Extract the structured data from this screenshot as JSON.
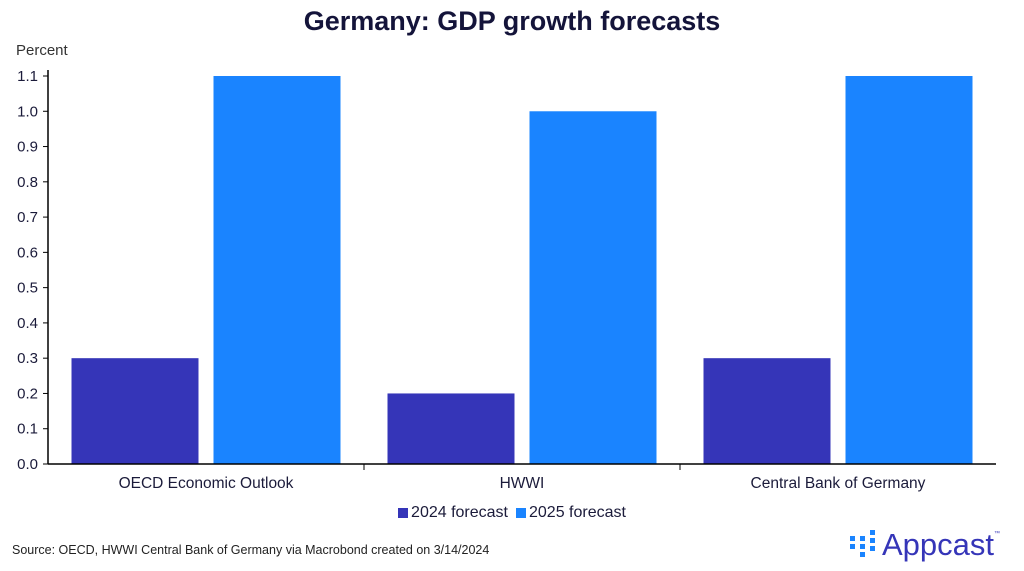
{
  "chart_data": {
    "type": "bar",
    "title": "Germany: GDP growth forecasts",
    "ylabel": "Percent",
    "xlabel": "",
    "categories": [
      "OECD Economic Outlook",
      "HWWI",
      "Central Bank of Germany"
    ],
    "series": [
      {
        "name": "2024 forecast",
        "color": "#3535b8",
        "values": [
          0.3,
          0.2,
          0.3
        ]
      },
      {
        "name": "2025 forecast",
        "color": "#1a84ff",
        "values": [
          1.1,
          1.0,
          1.1
        ]
      }
    ],
    "ylim": [
      0,
      1.1
    ],
    "yticks": [
      "0.0",
      "0.1",
      "0.2",
      "0.3",
      "0.4",
      "0.5",
      "0.6",
      "0.7",
      "0.8",
      "0.9",
      "1.0",
      "1.1"
    ],
    "grid": false,
    "legend": "bottom-center"
  },
  "source": "Source: OECD, HWWI Central Bank of Germany via Macrobond created on 3/14/2024",
  "logo": {
    "text": "Appcast",
    "tm": "™"
  }
}
